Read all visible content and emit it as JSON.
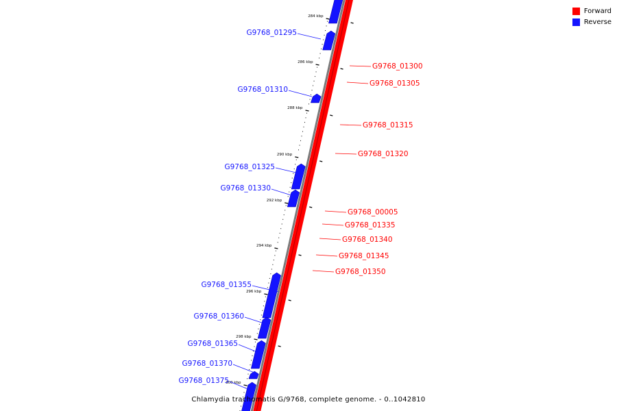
{
  "colors": {
    "forward": "#ff0000",
    "reverse": "#1414ff",
    "backbone": "#7a7a7a",
    "tick": "#000000"
  },
  "legend": {
    "forward_label": "Forward",
    "reverse_label": "Reverse"
  },
  "caption": "Chlamydia trachomatis G/9768, complete genome. - 0..1042810",
  "ticks": [
    "284 kbp",
    "286 kbp",
    "288 kbp",
    "290 kbp",
    "292 kbp",
    "294 kbp",
    "296 kbp",
    "298 kbp",
    "300 kbp"
  ],
  "reverse_genes": [
    "G9768_01295",
    "G9768_01310",
    "G9768_01325",
    "G9768_01330",
    "G9768_01355",
    "G9768_01360",
    "G9768_01365",
    "G9768_01370",
    "G9768_01375"
  ],
  "forward_genes": [
    "G9768_01300",
    "G9768_01305",
    "G9768_01315",
    "G9768_01320",
    "G9768_00005",
    "G9768_01335",
    "G9768_01340",
    "G9768_01345",
    "G9768_01350"
  ]
}
